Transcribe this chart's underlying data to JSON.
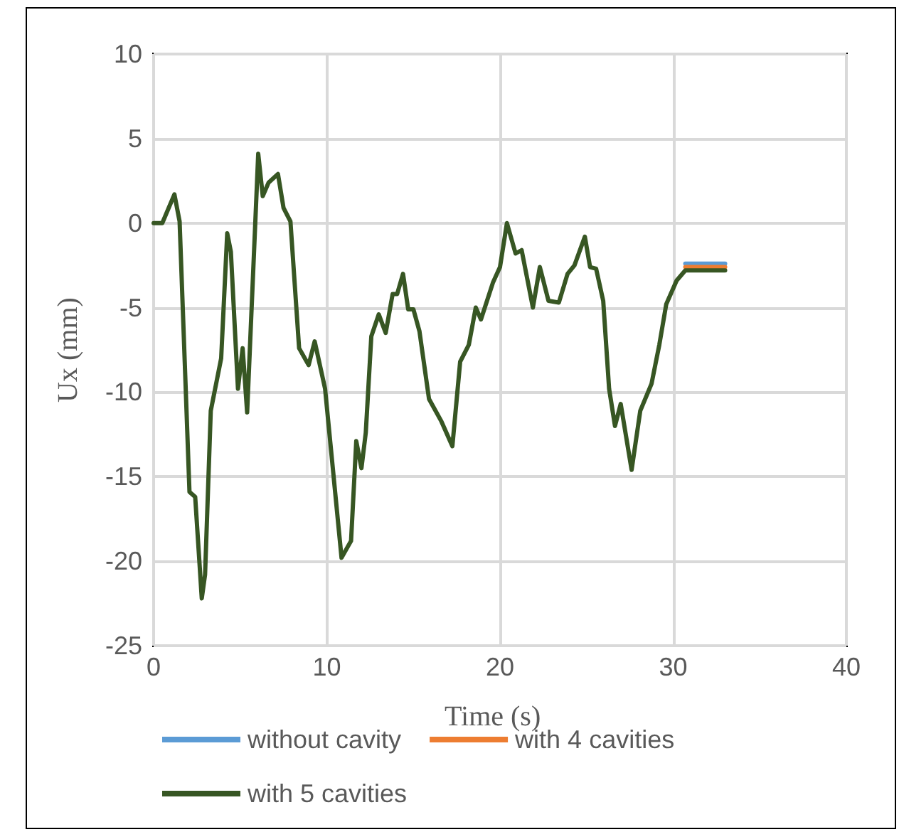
{
  "chart_data": {
    "type": "line",
    "xlabel": "Time (s)",
    "ylabel": "Ux (mm)",
    "xlim": [
      0,
      40
    ],
    "xticks": [
      0,
      10,
      20,
      30,
      40
    ],
    "ylim": [
      -25,
      10
    ],
    "yticks": [
      -25,
      -20,
      -15,
      -10,
      -5,
      0,
      5,
      10
    ],
    "grid": true,
    "legend": "bottom",
    "marker": "none",
    "line_style": "solid",
    "x": [
      0,
      0.5,
      1.2,
      1.5,
      2.07,
      2.4,
      2.78,
      2.97,
      3.3,
      3.9,
      4.25,
      4.46,
      4.87,
      5.14,
      5.4,
      6.04,
      6.3,
      6.64,
      7.18,
      7.5,
      7.9,
      8.4,
      8.95,
      9.3,
      9.9,
      10.85,
      11.4,
      11.7,
      12.0,
      12.25,
      12.57,
      13.0,
      13.4,
      13.8,
      14.06,
      14.4,
      14.7,
      15.0,
      15.35,
      15.9,
      16.6,
      17.25,
      17.7,
      18.2,
      18.6,
      18.9,
      19.6,
      20.0,
      20.4,
      20.9,
      21.25,
      21.9,
      22.3,
      22.8,
      23.4,
      23.9,
      24.3,
      24.9,
      25.2,
      25.55,
      25.96,
      26.3,
      26.64,
      26.97,
      27.6,
      28.1,
      28.75,
      29.2,
      29.6,
      30.2,
      30.7,
      33.0
    ],
    "series": [
      {
        "name": "without cavity",
        "color": "#5b9bd5",
        "values": [
          null,
          null,
          null,
          null,
          null,
          null,
          null,
          null,
          null,
          null,
          null,
          null,
          null,
          null,
          null,
          null,
          null,
          null,
          null,
          null,
          null,
          null,
          null,
          null,
          null,
          null,
          null,
          null,
          null,
          null,
          null,
          null,
          null,
          null,
          null,
          null,
          null,
          null,
          null,
          null,
          null,
          null,
          null,
          null,
          null,
          null,
          null,
          null,
          null,
          null,
          null,
          null,
          null,
          null,
          null,
          null,
          null,
          null,
          null,
          null,
          null,
          null,
          null,
          null,
          null,
          null,
          null,
          null,
          null,
          null,
          -2.4,
          -2.4
        ]
      },
      {
        "name": "with 4 cavities",
        "color": "#ed7d31",
        "values": [
          null,
          null,
          null,
          null,
          null,
          null,
          null,
          null,
          null,
          null,
          null,
          null,
          null,
          null,
          null,
          null,
          null,
          null,
          null,
          null,
          null,
          null,
          null,
          null,
          null,
          null,
          null,
          null,
          null,
          null,
          null,
          null,
          null,
          null,
          null,
          null,
          null,
          null,
          null,
          null,
          null,
          null,
          null,
          null,
          null,
          null,
          null,
          null,
          null,
          null,
          null,
          null,
          null,
          null,
          null,
          null,
          null,
          null,
          null,
          null,
          null,
          null,
          null,
          null,
          null,
          null,
          null,
          null,
          null,
          null,
          -2.6,
          -2.6
        ]
      },
      {
        "name": "with 5 cavities",
        "color": "#375623",
        "values": [
          0,
          0,
          1.7,
          0.1,
          -15.9,
          -16.2,
          -22.2,
          -20.8,
          -11.1,
          -8.0,
          -0.6,
          -1.7,
          -9.8,
          -7.4,
          -11.2,
          4.1,
          1.6,
          2.4,
          2.9,
          0.9,
          0.1,
          -7.4,
          -8.4,
          -7.0,
          -9.8,
          -19.8,
          -18.8,
          -12.9,
          -14.5,
          -12.4,
          -6.7,
          -5.4,
          -6.5,
          -4.2,
          -4.2,
          -3.0,
          -5.1,
          -5.1,
          -6.4,
          -10.4,
          -11.7,
          -13.2,
          -8.2,
          -7.2,
          -5.0,
          -5.7,
          -3.5,
          -2.6,
          0,
          -1.8,
          -1.6,
          -5.0,
          -2.6,
          -4.6,
          -4.7,
          -3.0,
          -2.5,
          -0.8,
          -2.6,
          -2.7,
          -4.6,
          -9.8,
          -12.0,
          -10.7,
          -14.6,
          -11.1,
          -9.5,
          -7.2,
          -4.8,
          -3.4,
          -2.8,
          -2.8
        ]
      }
    ]
  }
}
